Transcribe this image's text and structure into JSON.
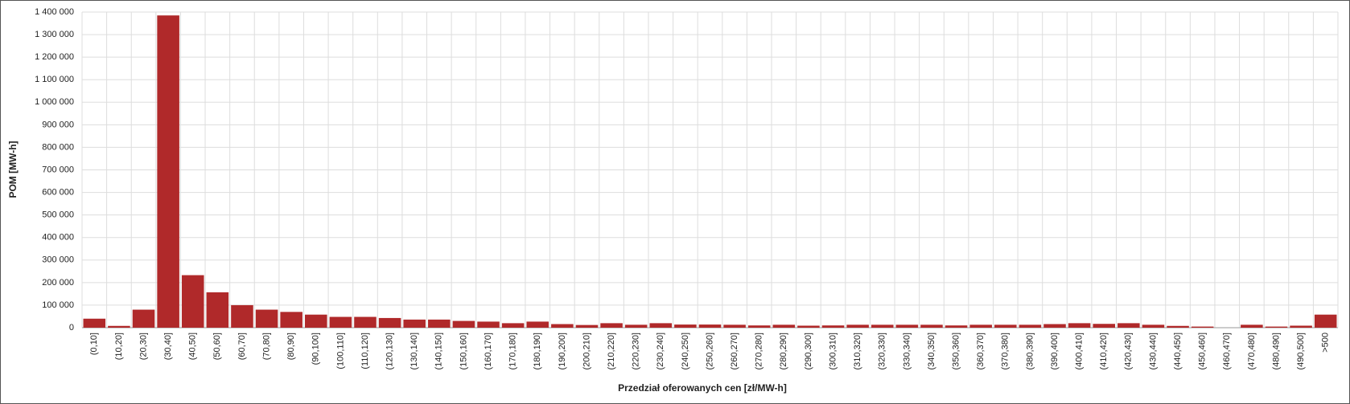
{
  "chart_data": {
    "type": "bar",
    "x_label": "Przedział oferowanych cen [zł/MW-h]",
    "y_label": "POM [MW-h]",
    "color": "#b0292a",
    "grid": true,
    "categories": [
      "(0,10]",
      "(10,20]",
      "(20,30]",
      "(30,40]",
      "(40,50]",
      "(50,60]",
      "(60,70]",
      "(70,80]",
      "(80,90]",
      "(90,100]",
      "(100,110]",
      "(110,120]",
      "(120,130]",
      "(130,140]",
      "(140,150]",
      "(150,160]",
      "(160,170]",
      "(170,180]",
      "(180,190]",
      "(190,200]",
      "(200,210]",
      "(210,220]",
      "(220,230]",
      "(230,240]",
      "(240,250]",
      "(250,260]",
      "(260,270]",
      "(270,280]",
      "(280,290]",
      "(290,300]",
      "(300,310]",
      "(310,320]",
      "(320,330]",
      "(330,340]",
      "(340,350]",
      "(350,360]",
      "(360,370]",
      "(370,380]",
      "(380,390]",
      "(390,400]",
      "(400,410]",
      "(410,420]",
      "(420,430]",
      "(430,440]",
      "(440,450]",
      "(450,460]",
      "(460,470]",
      "(470,480]",
      "(480,490]",
      "(490,500]",
      ">500"
    ],
    "values": [
      40000,
      8000,
      80000,
      1385000,
      233000,
      157000,
      100000,
      80000,
      70000,
      58000,
      48000,
      48000,
      43000,
      36000,
      36000,
      30000,
      27000,
      20000,
      27000,
      16000,
      12000,
      20000,
      13000,
      20000,
      14000,
      14000,
      13000,
      10000,
      13000,
      9000,
      10000,
      13000,
      13000,
      13000,
      13000,
      10000,
      13000,
      13000,
      13000,
      16000,
      20000,
      17000,
      20000,
      13000,
      8000,
      5000,
      0,
      13000,
      5000,
      9000,
      58000
    ],
    "ylim": [
      0,
      1400000
    ],
    "yticks": [
      0,
      {
        "value": 100000,
        "label": "100 000"
      },
      {
        "value": 200000,
        "label": "200 000"
      },
      {
        "value": 300000,
        "label": "300 000"
      },
      {
        "value": 400000,
        "label": "400 000"
      },
      {
        "value": 500000,
        "label": "500 000"
      },
      {
        "value": 600000,
        "label": "600 000"
      },
      {
        "value": 700000,
        "label": "700 000"
      },
      {
        "value": 800000,
        "label": "800 000"
      },
      {
        "value": 900000,
        "label": "900 000"
      },
      {
        "value": 1000000,
        "label": "1 000 000"
      },
      {
        "value": 1100000,
        "label": "1 100 000"
      },
      {
        "value": 1200000,
        "label": "1 200 000"
      },
      {
        "value": 1300000,
        "label": "1 300 000"
      },
      {
        "value": 1400000,
        "label": "1 400 000"
      }
    ]
  }
}
